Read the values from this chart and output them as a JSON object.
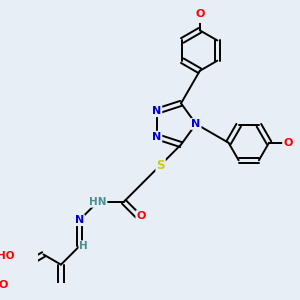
{
  "background_color": "#e8eef5",
  "atom_colors": {
    "C": "#000000",
    "N": "#0000cc",
    "O": "#ff0000",
    "S": "#cccc00",
    "H": "#4a9090"
  },
  "bond_color": "#000000",
  "figsize": [
    3.0,
    3.0
  ],
  "dpi": 100
}
